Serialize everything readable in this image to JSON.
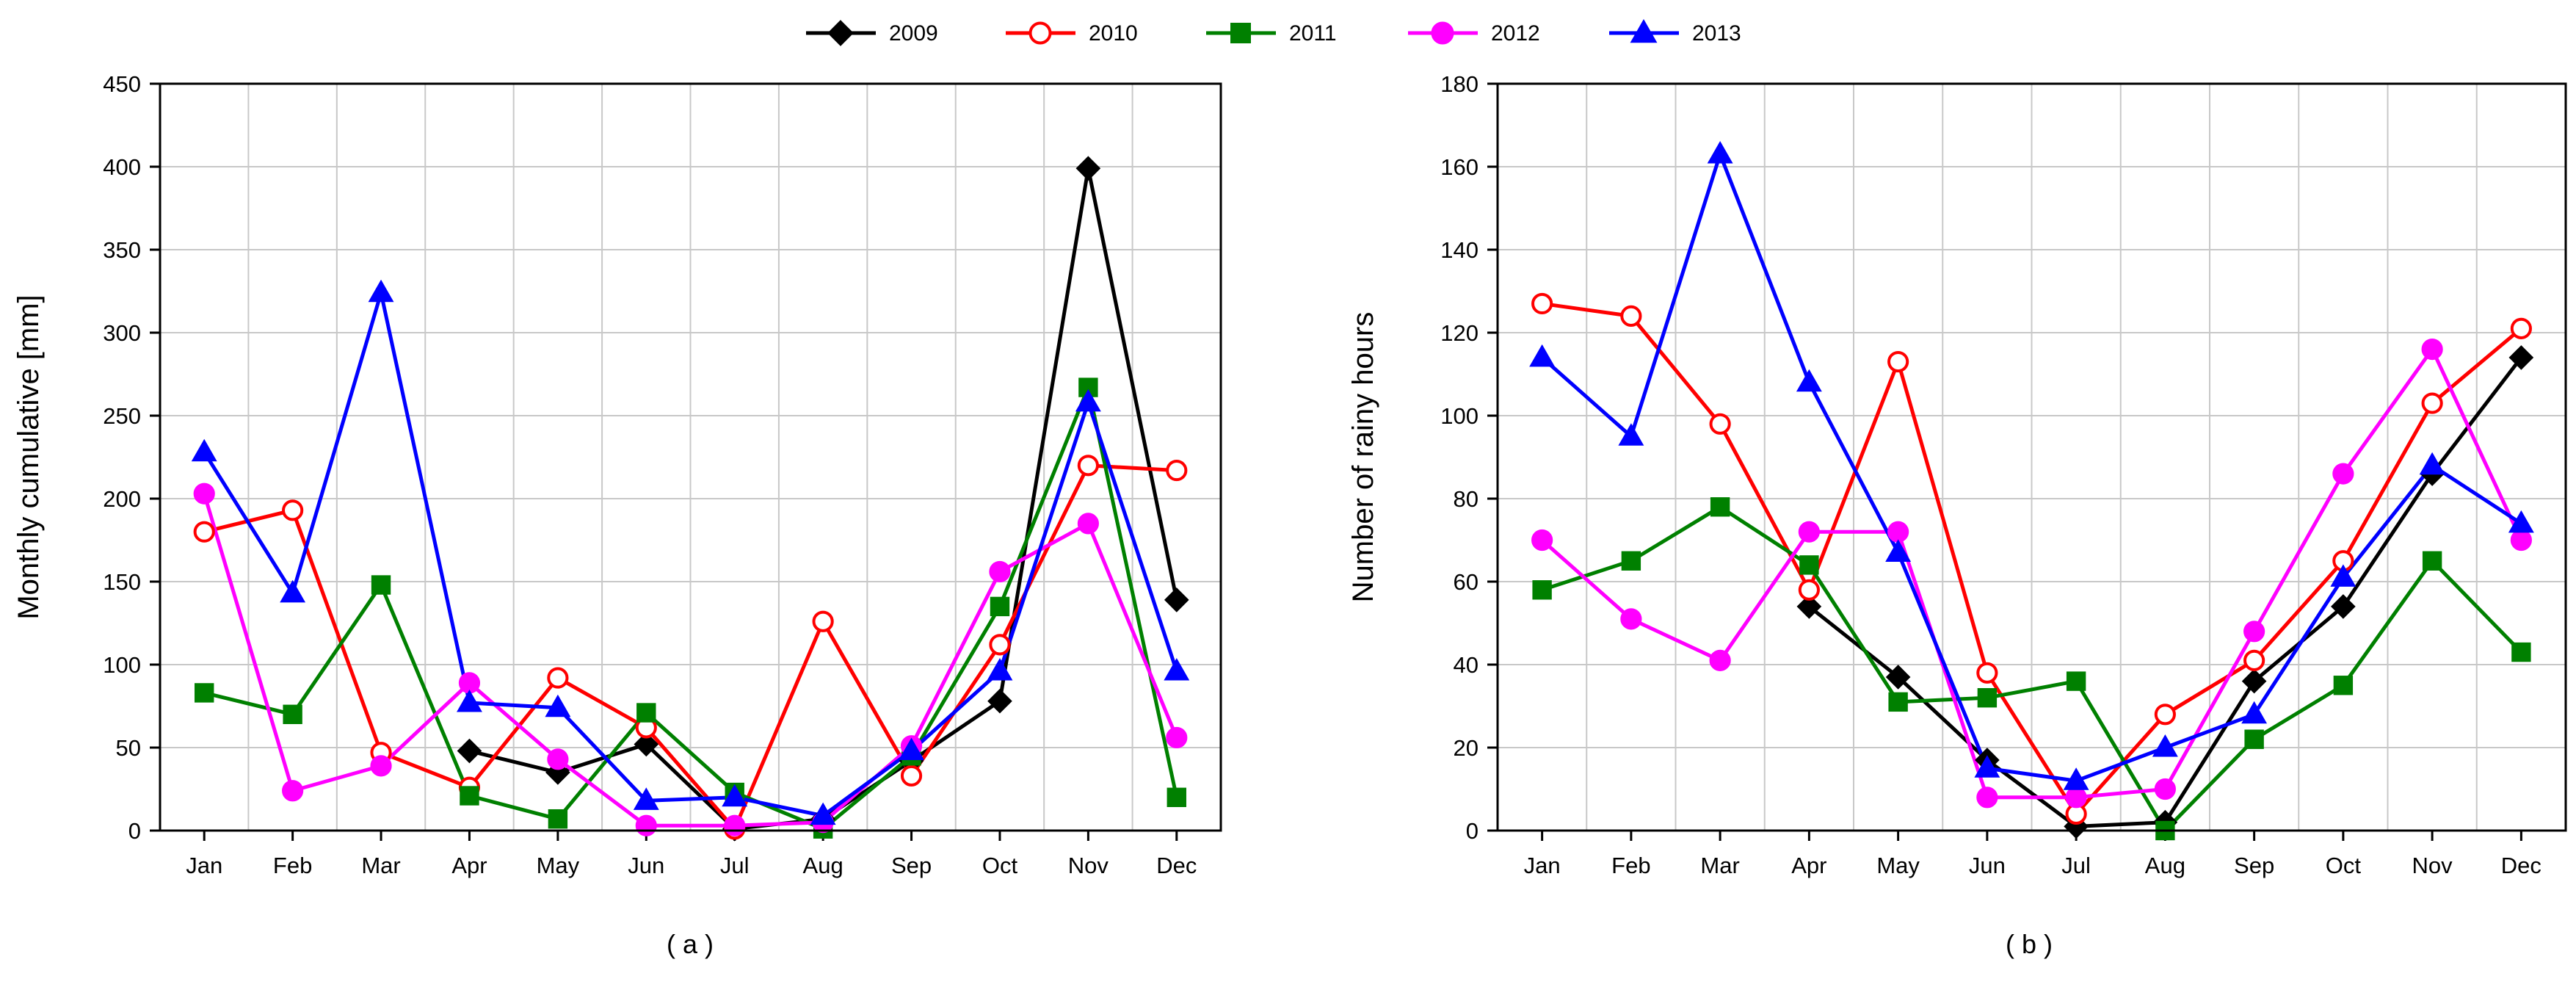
{
  "legend": {
    "placement": "top-center",
    "entries": [
      {
        "name": "2009",
        "color": "#000000",
        "marker": "diamond",
        "filled": true
      },
      {
        "name": "2010",
        "color": "#ff0000",
        "marker": "circle",
        "filled": false
      },
      {
        "name": "2011",
        "color": "#008000",
        "marker": "square",
        "filled": true
      },
      {
        "name": "2012",
        "color": "#ff00ff",
        "marker": "circle",
        "filled": true
      },
      {
        "name": "2013",
        "color": "#0000ff",
        "marker": "triangle",
        "filled": true
      }
    ]
  },
  "chart_data": [
    {
      "type": "line",
      "panel_label": "( a )",
      "title": "",
      "xlabel": "",
      "ylabel": "Monthly cumulative [mm]",
      "ylim": [
        0,
        450
      ],
      "yticks": [
        0,
        50,
        100,
        150,
        200,
        250,
        300,
        350,
        400,
        450
      ],
      "grid": true,
      "categories": [
        "Jan",
        "Feb",
        "Mar",
        "Apr",
        "May",
        "Jun",
        "Jul",
        "Aug",
        "Sep",
        "Oct",
        "Nov",
        "Dec"
      ],
      "series": [
        {
          "name": "2009",
          "values": [
            null,
            null,
            null,
            48,
            35,
            52,
            1,
            7,
            42,
            78,
            399,
            139
          ]
        },
        {
          "name": "2010",
          "values": [
            180,
            193,
            47,
            26,
            92,
            62,
            1,
            126,
            33,
            112,
            220,
            217
          ]
        },
        {
          "name": "2011",
          "values": [
            83,
            70,
            148,
            21,
            7,
            71,
            23,
            1,
            45,
            135,
            267,
            20
          ]
        },
        {
          "name": "2012",
          "values": [
            203,
            24,
            39,
            89,
            43,
            3,
            3,
            5,
            51,
            156,
            185,
            56
          ]
        },
        {
          "name": "2013",
          "values": [
            228,
            143,
            324,
            77,
            74,
            18,
            20,
            9,
            48,
            96,
            258,
            96
          ]
        }
      ]
    },
    {
      "type": "line",
      "panel_label": "( b )",
      "title": "",
      "xlabel": "",
      "ylabel": "Number of rainy hours",
      "ylim": [
        0,
        180
      ],
      "yticks": [
        0,
        20,
        40,
        60,
        80,
        100,
        120,
        140,
        160,
        180
      ],
      "grid": true,
      "categories": [
        "Jan",
        "Feb",
        "Mar",
        "Apr",
        "May",
        "Jun",
        "Jul",
        "Aug",
        "Sep",
        "Oct",
        "Nov",
        "Dec"
      ],
      "series": [
        {
          "name": "2009",
          "values": [
            null,
            null,
            null,
            54,
            37,
            17,
            1,
            2,
            36,
            54,
            86,
            114
          ]
        },
        {
          "name": "2010",
          "values": [
            127,
            124,
            98,
            58,
            113,
            38,
            4,
            28,
            41,
            65,
            103,
            121
          ]
        },
        {
          "name": "2011",
          "values": [
            58,
            65,
            78,
            64,
            31,
            32,
            36,
            0,
            22,
            35,
            65,
            43
          ]
        },
        {
          "name": "2012",
          "values": [
            70,
            51,
            41,
            72,
            72,
            8,
            8,
            10,
            48,
            86,
            116,
            70
          ]
        },
        {
          "name": "2013",
          "values": [
            114,
            95,
            163,
            108,
            67,
            15,
            12,
            20,
            28,
            61,
            88,
            74
          ]
        }
      ]
    }
  ]
}
